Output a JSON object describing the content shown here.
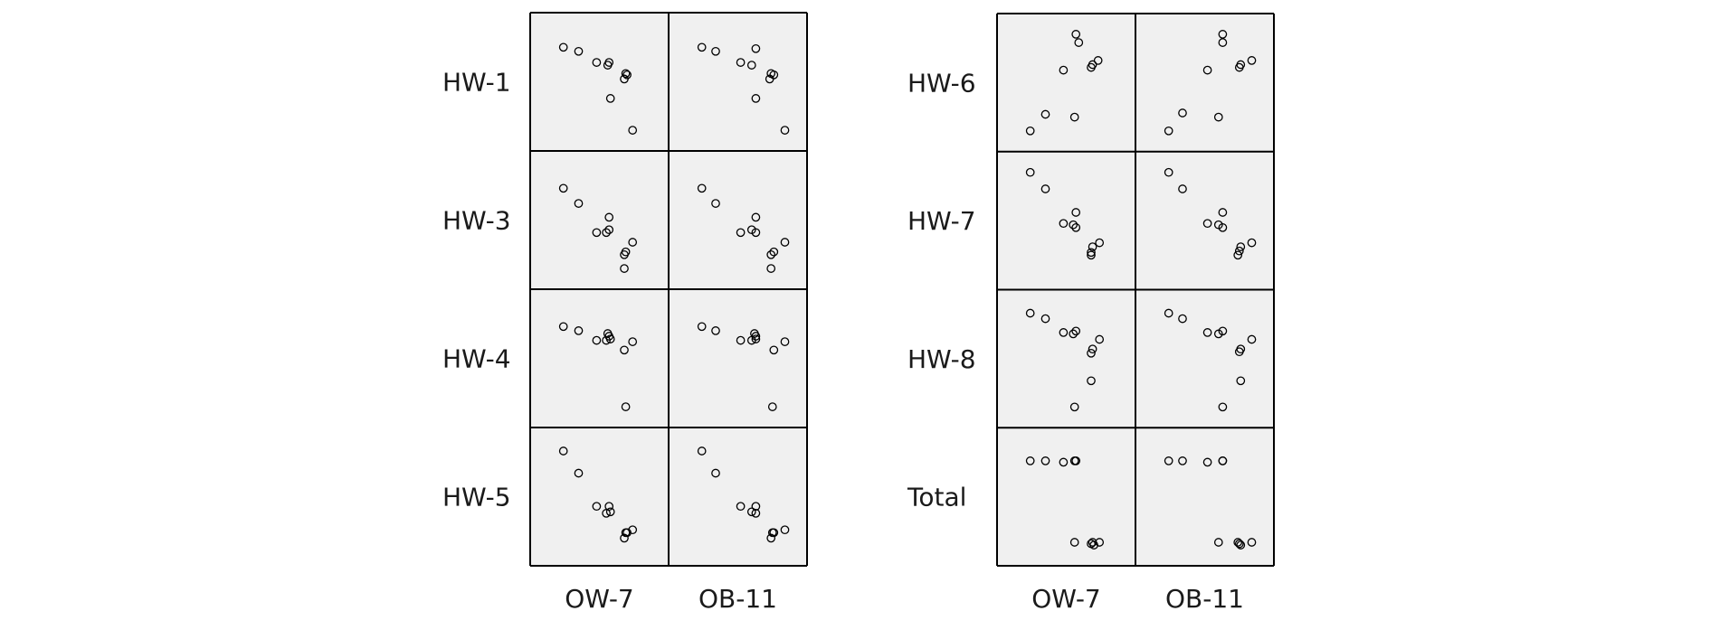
{
  "chart_data": {
    "type": "scatter",
    "style": {
      "panel_fill": "#f0f0f0",
      "frame_color": "#000000",
      "marker_color": "#000000",
      "marker": "open-circle"
    },
    "axes": {
      "x_range": [
        0,
        1
      ],
      "y_range": [
        0,
        1
      ],
      "ticks": "none",
      "grid": false
    },
    "matrices": [
      {
        "columns": [
          "OW-7",
          "OB-11"
        ],
        "rows": [
          {
            "label": "HW-1",
            "cells": [
              {
                "x": [
                  0.24,
                  0.35,
                  0.57,
                  0.48,
                  0.56,
                  0.69,
                  0.7,
                  0.68,
                  0.58,
                  0.74
                ],
                "y": [
                  0.75,
                  0.72,
                  0.64,
                  0.64,
                  0.62,
                  0.56,
                  0.55,
                  0.52,
                  0.38,
                  0.15
                ]
              },
              {
                "x": [
                  0.24,
                  0.34,
                  0.63,
                  0.52,
                  0.6,
                  0.74,
                  0.76,
                  0.73,
                  0.63,
                  0.84
                ],
                "y": [
                  0.75,
                  0.72,
                  0.74,
                  0.64,
                  0.62,
                  0.56,
                  0.55,
                  0.52,
                  0.38,
                  0.15
                ]
              }
            ]
          },
          {
            "label": "HW-3",
            "cells": [
              {
                "x": [
                  0.24,
                  0.35,
                  0.57,
                  0.57,
                  0.55,
                  0.48,
                  0.74,
                  0.69,
                  0.68,
                  0.68
                ],
                "y": [
                  0.73,
                  0.62,
                  0.52,
                  0.43,
                  0.41,
                  0.41,
                  0.34,
                  0.27,
                  0.25,
                  0.15
                ]
              },
              {
                "x": [
                  0.24,
                  0.34,
                  0.63,
                  0.6,
                  0.52,
                  0.63,
                  0.84,
                  0.76,
                  0.74,
                  0.74
                ],
                "y": [
                  0.73,
                  0.62,
                  0.52,
                  0.43,
                  0.41,
                  0.41,
                  0.34,
                  0.27,
                  0.25,
                  0.15
                ]
              }
            ]
          },
          {
            "label": "HW-4",
            "cells": [
              {
                "x": [
                  0.24,
                  0.35,
                  0.48,
                  0.55,
                  0.58,
                  0.56,
                  0.57,
                  0.74,
                  0.68,
                  0.69
                ],
                "y": [
                  0.73,
                  0.7,
                  0.63,
                  0.63,
                  0.64,
                  0.68,
                  0.66,
                  0.62,
                  0.56,
                  0.15
                ]
              },
              {
                "x": [
                  0.24,
                  0.34,
                  0.52,
                  0.6,
                  0.63,
                  0.62,
                  0.63,
                  0.84,
                  0.76,
                  0.75
                ],
                "y": [
                  0.73,
                  0.7,
                  0.63,
                  0.63,
                  0.64,
                  0.68,
                  0.66,
                  0.62,
                  0.56,
                  0.15
                ]
              }
            ]
          },
          {
            "label": "HW-5",
            "cells": [
              {
                "x": [
                  0.24,
                  0.35,
                  0.48,
                  0.57,
                  0.55,
                  0.58,
                  0.74,
                  0.7,
                  0.68,
                  0.69
                ],
                "y": [
                  0.83,
                  0.67,
                  0.43,
                  0.43,
                  0.38,
                  0.39,
                  0.26,
                  0.24,
                  0.2,
                  0.24
                ]
              },
              {
                "x": [
                  0.24,
                  0.34,
                  0.52,
                  0.63,
                  0.6,
                  0.63,
                  0.84,
                  0.76,
                  0.74,
                  0.75
                ],
                "y": [
                  0.83,
                  0.67,
                  0.43,
                  0.43,
                  0.39,
                  0.38,
                  0.26,
                  0.24,
                  0.2,
                  0.24
                ]
              }
            ]
          }
        ]
      },
      {
        "columns": [
          "OW-7",
          "OB-11"
        ],
        "rows": [
          {
            "label": "HW-6",
            "cells": [
              {
                "x": [
                  0.57,
                  0.59,
                  0.73,
                  0.69,
                  0.68,
                  0.48,
                  0.35,
                  0.56,
                  0.24
                ],
                "y": [
                  0.85,
                  0.79,
                  0.66,
                  0.63,
                  0.61,
                  0.59,
                  0.27,
                  0.25,
                  0.15
                ]
              },
              {
                "x": [
                  0.63,
                  0.63,
                  0.84,
                  0.76,
                  0.75,
                  0.52,
                  0.34,
                  0.6,
                  0.24
                ],
                "y": [
                  0.85,
                  0.79,
                  0.66,
                  0.63,
                  0.61,
                  0.59,
                  0.28,
                  0.25,
                  0.15
                ]
              }
            ]
          },
          {
            "label": "HW-7",
            "cells": [
              {
                "x": [
                  0.24,
                  0.35,
                  0.57,
                  0.48,
                  0.55,
                  0.57,
                  0.74,
                  0.69,
                  0.68,
                  0.68
                ],
                "y": [
                  0.85,
                  0.73,
                  0.56,
                  0.48,
                  0.47,
                  0.45,
                  0.34,
                  0.31,
                  0.27,
                  0.25
                ]
              },
              {
                "x": [
                  0.24,
                  0.34,
                  0.63,
                  0.52,
                  0.6,
                  0.63,
                  0.84,
                  0.76,
                  0.75,
                  0.74
                ],
                "y": [
                  0.85,
                  0.73,
                  0.56,
                  0.48,
                  0.47,
                  0.45,
                  0.34,
                  0.31,
                  0.28,
                  0.25
                ]
              }
            ]
          },
          {
            "label": "HW-8",
            "cells": [
              {
                "x": [
                  0.24,
                  0.35,
                  0.48,
                  0.57,
                  0.55,
                  0.74,
                  0.69,
                  0.68,
                  0.68,
                  0.56
                ],
                "y": [
                  0.83,
                  0.79,
                  0.69,
                  0.7,
                  0.68,
                  0.64,
                  0.57,
                  0.54,
                  0.34,
                  0.15
                ]
              },
              {
                "x": [
                  0.24,
                  0.34,
                  0.52,
                  0.6,
                  0.63,
                  0.84,
                  0.76,
                  0.75,
                  0.76,
                  0.63
                ],
                "y": [
                  0.83,
                  0.79,
                  0.69,
                  0.68,
                  0.7,
                  0.64,
                  0.57,
                  0.55,
                  0.34,
                  0.15
                ]
              }
            ]
          },
          {
            "label": "Total",
            "cells": [
              {
                "x": [
                  0.24,
                  0.35,
                  0.48,
                  0.56,
                  0.57,
                  0.56,
                  0.68,
                  0.69,
                  0.74,
                  0.7
                ],
                "y": [
                  0.76,
                  0.76,
                  0.75,
                  0.76,
                  0.76,
                  0.17,
                  0.16,
                  0.17,
                  0.17,
                  0.15
                ]
              },
              {
                "x": [
                  0.24,
                  0.34,
                  0.52,
                  0.63,
                  0.63,
                  0.6,
                  0.74,
                  0.75,
                  0.84,
                  0.76
                ],
                "y": [
                  0.76,
                  0.76,
                  0.75,
                  0.76,
                  0.76,
                  0.17,
                  0.17,
                  0.16,
                  0.17,
                  0.15
                ]
              }
            ]
          }
        ]
      }
    ]
  }
}
